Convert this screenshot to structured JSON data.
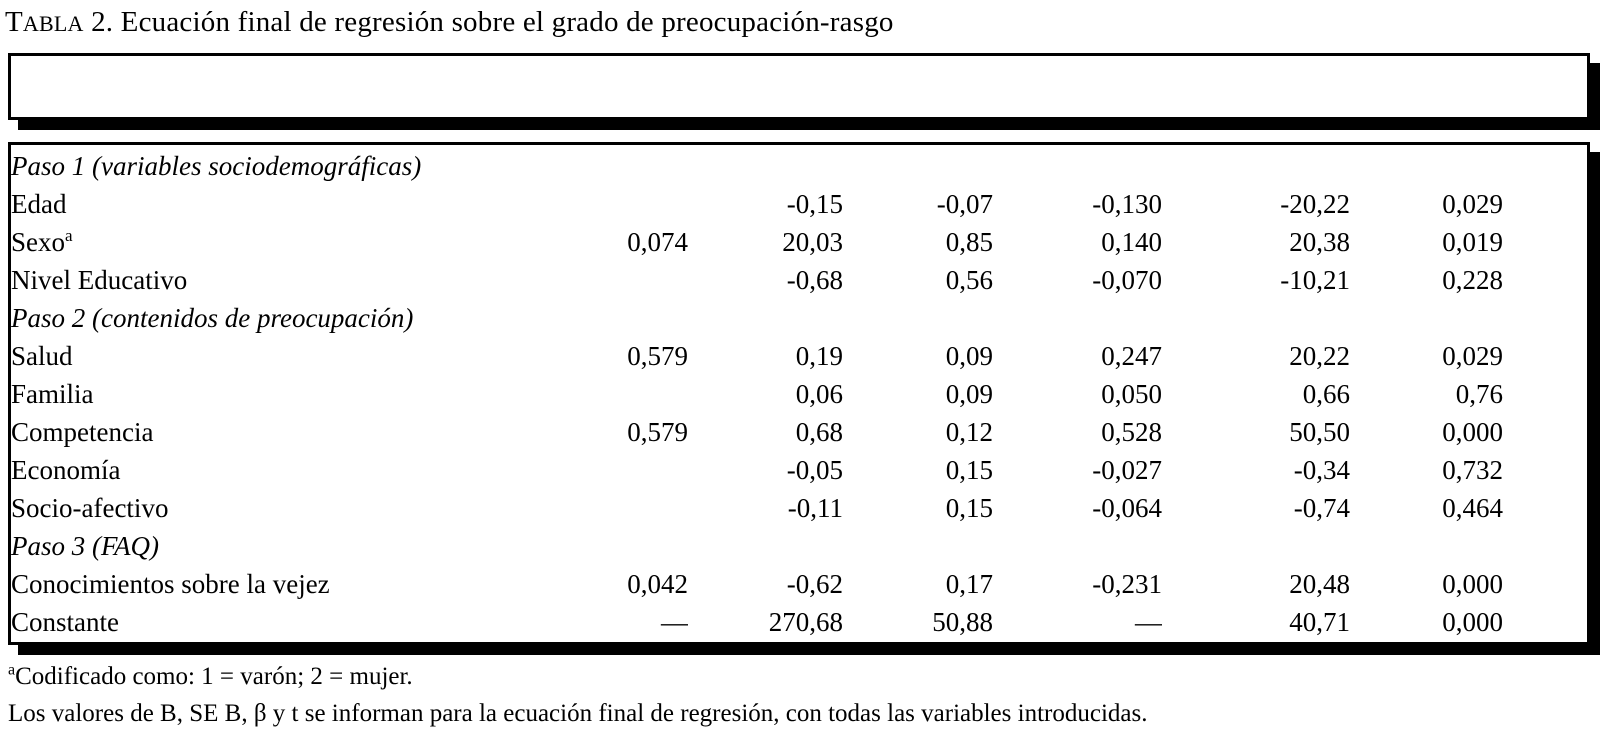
{
  "caption": {
    "word_initial": "T",
    "word_rest": "ABLA",
    "rest": " 2. Ecuación final de regresión sobre el grado de preocupación-rasgo"
  },
  "table": {
    "rows": [
      {
        "label": "Paso 1 (variables sociodemográficas)",
        "italic": true,
        "values": [
          "",
          "",
          "",
          "",
          "",
          ""
        ]
      },
      {
        "label": "Edad",
        "italic": false,
        "values": [
          "",
          "-0,15",
          "-0,07",
          "-0,130",
          "-20,22",
          "0,029"
        ]
      },
      {
        "label": "Sexo",
        "sup": "a",
        "italic": false,
        "values": [
          "0,074",
          "20,03",
          "0,85",
          "0,140",
          "20,38",
          "0,019"
        ]
      },
      {
        "label": "Nivel Educativo",
        "italic": false,
        "values": [
          "",
          "-0,68",
          "0,56",
          "-0,070",
          "-10,21",
          "0,228"
        ]
      },
      {
        "label": "Paso 2 (contenidos de preocupación)",
        "italic": true,
        "values": [
          "",
          "",
          "",
          "",
          "",
          ""
        ]
      },
      {
        "label": "Salud",
        "italic": false,
        "values": [
          "0,579",
          "0,19",
          "0,09",
          "0,247",
          "20,22",
          "0,029"
        ]
      },
      {
        "label": "Familia",
        "italic": false,
        "values": [
          "",
          "0,06",
          "0,09",
          "0,050",
          "0,66",
          "0,76"
        ]
      },
      {
        "label": "Competencia",
        "italic": false,
        "values": [
          "0,579",
          "0,68",
          "0,12",
          "0,528",
          "50,50",
          "0,000"
        ]
      },
      {
        "label": "Economía",
        "italic": false,
        "values": [
          "",
          "-0,05",
          "0,15",
          "-0,027",
          "-0,34",
          "0,732"
        ]
      },
      {
        "label": "Socio-afectivo",
        "italic": false,
        "values": [
          "",
          "-0,11",
          "0,15",
          "-0,064",
          "-0,74",
          "0,464"
        ]
      },
      {
        "label": "Paso 3 (FAQ)",
        "italic": true,
        "values": [
          "",
          "",
          "",
          "",
          "",
          ""
        ]
      },
      {
        "label": "Conocimientos sobre la vejez",
        "italic": false,
        "values": [
          "0,042",
          "-0,62",
          "0,17",
          "-0,231",
          "20,48",
          "0,000"
        ]
      },
      {
        "label": "Constante",
        "italic": false,
        "values": [
          "—",
          "270,68",
          "50,88",
          "—",
          "40,71",
          "0,000"
        ]
      }
    ]
  },
  "footnotes": [
    {
      "sup": "a",
      "text": "Codificado como: 1 = varón; 2 = mujer."
    },
    {
      "sup": "",
      "text": "Los valores de B, SE B, β y t se informan para la ecuación final de regresión, con todas las variables introducidas."
    }
  ],
  "colors": {
    "text": "#000000",
    "background": "#ffffff",
    "border": "#000000",
    "shadow": "#000000"
  }
}
